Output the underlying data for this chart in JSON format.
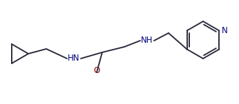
{
  "bg_color": "#ffffff",
  "line_color": "#2b2b3b",
  "N_color": "#000080",
  "O_color": "#8b0000",
  "line_width": 1.4,
  "figsize": [
    3.46,
    1.51
  ],
  "dpi": 100,
  "xlim": [
    0,
    346
  ],
  "ylim": [
    0,
    151
  ]
}
